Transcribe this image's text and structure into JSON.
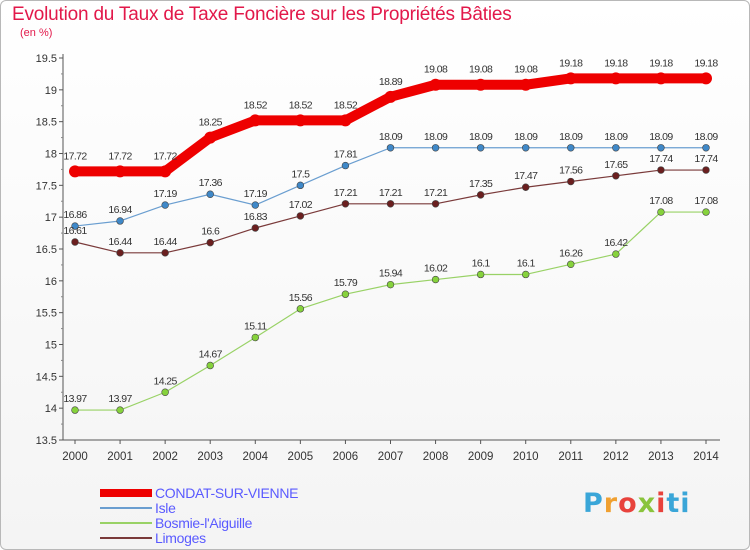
{
  "header": {
    "title": "Evolution du Taux de Taxe Foncière sur les Propriétés Bâties",
    "unit": "(en %)"
  },
  "brand": {
    "text": "Proxiti",
    "color": "#3aa6d8"
  },
  "chart_data": {
    "type": "line",
    "title": "Evolution du Taux de Taxe Foncière sur les Propriétés Bâties",
    "ylabel": "(en %)",
    "xlabel": "",
    "x": [
      "2000",
      "2001",
      "2002",
      "2003",
      "2004",
      "2005",
      "2006",
      "2007",
      "2008",
      "2009",
      "2010",
      "2011",
      "2012",
      "2013",
      "2014"
    ],
    "yticks": [
      "13.5",
      "14",
      "14.5",
      "15",
      "15.5",
      "16",
      "16.5",
      "17",
      "17.5",
      "18",
      "18.5",
      "19",
      "19.5"
    ],
    "ylim": [
      13.5,
      19.5
    ],
    "grid": false,
    "legend": "bottom-left",
    "series": [
      {
        "name": "CONDAT-SUR-VIENNE",
        "color": "#ee0000",
        "lineWidth": 10,
        "markerRadius": 6,
        "values": [
          17.72,
          17.72,
          17.72,
          18.25,
          18.52,
          18.52,
          18.52,
          18.89,
          19.08,
          19.08,
          19.08,
          19.18,
          19.18,
          19.18,
          19.18
        ],
        "labels": [
          "17.72",
          "17.72",
          "17.72",
          "18.25",
          "18.52",
          "18.52",
          "18.52",
          "18.89",
          "19.08",
          "19.08",
          "19.08",
          "19.18",
          "19.18",
          "19.18",
          "19.18"
        ]
      },
      {
        "name": "Isle",
        "color": "#6a9ed0",
        "marker": "#3f88c8",
        "lineWidth": 1.2,
        "markerRadius": 3.4,
        "values": [
          16.86,
          16.94,
          17.19,
          17.36,
          17.19,
          17.5,
          17.81,
          18.09,
          18.09,
          18.09,
          18.09,
          18.09,
          18.09,
          18.09,
          18.09
        ],
        "labels": [
          "16.86",
          "16.94",
          "17.19",
          "17.36",
          "17.19",
          "17.5",
          "17.81",
          "18.09",
          "18.09",
          "18.09",
          "18.09",
          "18.09",
          "18.09",
          "18.09",
          "18.09"
        ]
      },
      {
        "name": "Bosmie-l'Aiguille",
        "color": "#99d266",
        "marker": "#86d23c",
        "lineWidth": 1.2,
        "markerRadius": 3.4,
        "values": [
          13.97,
          13.97,
          14.25,
          14.67,
          15.11,
          15.56,
          15.79,
          15.94,
          16.02,
          16.1,
          16.1,
          16.26,
          16.42,
          17.08,
          17.08
        ],
        "labels": [
          "13.97",
          "13.97",
          "14.25",
          "14.67",
          "15.11",
          "15.56",
          "15.79",
          "15.94",
          "16.02",
          "16.1",
          "16.1",
          "16.26",
          "16.42",
          "17.08",
          "17.08"
        ]
      },
      {
        "name": "Limoges",
        "color": "#7a3a3a",
        "marker": "#6b1f1f",
        "lineWidth": 1.2,
        "markerRadius": 3.4,
        "values": [
          16.61,
          16.44,
          16.44,
          16.6,
          16.83,
          17.02,
          17.21,
          17.21,
          17.21,
          17.35,
          17.47,
          17.56,
          17.65,
          17.74,
          17.74
        ],
        "labels": [
          "16.61",
          "16.44",
          "16.44",
          "16.6",
          "16.83",
          "17.02",
          "17.21",
          "17.21",
          "17.21",
          "17.35",
          "17.47",
          "17.56",
          "17.65",
          "17.74",
          "17.74"
        ]
      }
    ]
  }
}
